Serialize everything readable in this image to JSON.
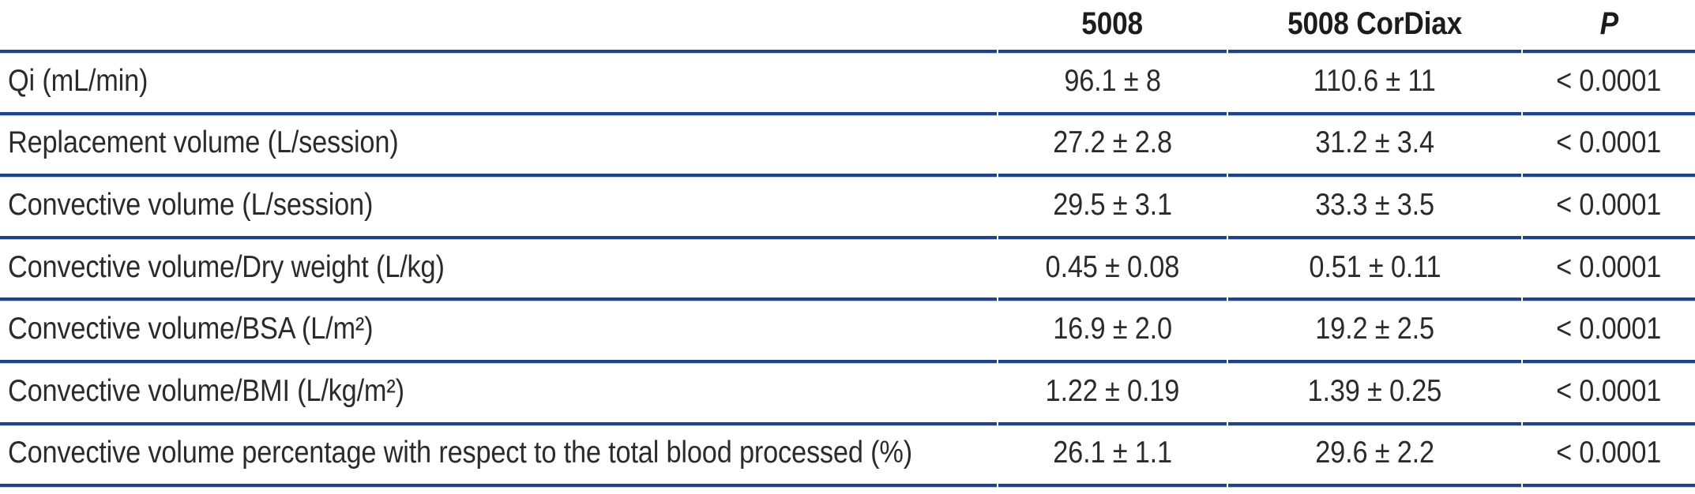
{
  "colors": {
    "rule_dark": "#1d4586",
    "rule_light": "#b9cde8",
    "text": "#2b2b2b"
  },
  "table": {
    "header": {
      "col1": "",
      "col2": "5008",
      "col3": "5008 CorDiax",
      "col4": "P"
    },
    "rows": [
      {
        "label": "Qi (mL/min)",
        "v5008": "96.1 ± 8",
        "vcordiax": "110.6 ± 11",
        "p": "< 0.0001"
      },
      {
        "label": "Replacement volume (L/session)",
        "v5008": "27.2 ± 2.8",
        "vcordiax": "31.2 ± 3.4",
        "p": "< 0.0001"
      },
      {
        "label": "Convective volume (L/session)",
        "v5008": "29.5 ± 3.1",
        "vcordiax": "33.3 ± 3.5",
        "p": "< 0.0001"
      },
      {
        "label": "Convective volume/Dry weight (L/kg)",
        "v5008": "0.45 ± 0.08",
        "vcordiax": "0.51 ± 0.11",
        "p": "< 0.0001"
      },
      {
        "label": "Convective volume/BSA (L/m²)",
        "v5008": "16.9 ± 2.0",
        "vcordiax": "19.2 ± 2.5",
        "p": "< 0.0001"
      },
      {
        "label": "Convective volume/BMI (L/kg/m²)",
        "v5008": "1.22 ± 0.19",
        "vcordiax": "1.39 ± 0.25",
        "p": "< 0.0001"
      },
      {
        "label": "Convective volume percentage with respect to the total blood processed (%)",
        "v5008": "26.1 ± 1.1",
        "vcordiax": "29.6 ± 2.2",
        "p": "< 0.0001"
      }
    ]
  }
}
